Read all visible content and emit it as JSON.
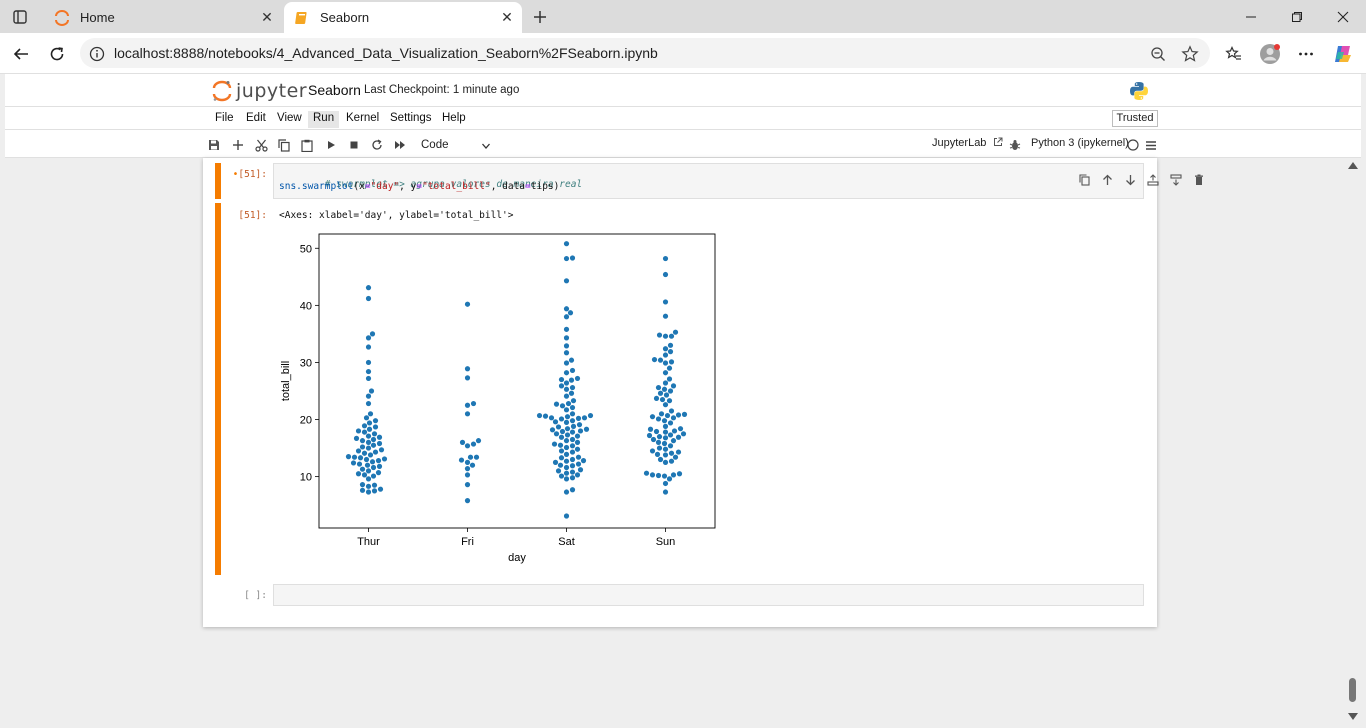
{
  "browser": {
    "tabs": [
      {
        "label": "Home",
        "icon": "jupyter-icon"
      },
      {
        "label": "Seaborn",
        "icon": "notebook-icon"
      }
    ],
    "url": "localhost:8888/notebooks/4_Advanced_Data_Visualization_Seaborn%2FSeaborn.ipynb"
  },
  "jupyter": {
    "logo_text": "jupyter",
    "notebook_title": "Seaborn",
    "checkpoint": "Last Checkpoint: 1 minute ago",
    "menu": [
      "File",
      "Edit",
      "View",
      "Run",
      "Kernel",
      "Settings",
      "Help"
    ],
    "active_menu": "Run",
    "trusted": "Trusted",
    "cell_type": "Code",
    "jupyterlab_link": "JupyterLab",
    "kernel": "Python 3 (ipykernel)"
  },
  "cells": {
    "code_cell": {
      "prompt": "[51]:",
      "line1": "# swarmplot => agrupa valores de maneira real",
      "line2_fn": "sns.swarmplot",
      "line2_args": "(x=\"day\", y=\"total_bill\", data=tips)",
      "line2_open": "(x",
      "line2_eq1": "=",
      "line2_s1": "\"day\"",
      "line2_c1": ", y",
      "line2_eq2": "=",
      "line2_s2": "\"total_bill\"",
      "line2_c2": ", data",
      "line2_eq3": "=",
      "line2_tail": "tips)"
    },
    "output_cell": {
      "prompt": "[51]:",
      "text": "<Axes: xlabel='day', ylabel='total_bill'>"
    },
    "empty_cell": {
      "prompt": "[ ]:"
    }
  },
  "chart_data": {
    "type": "scatter",
    "subtype": "swarm",
    "xlabel": "day",
    "ylabel": "total_bill",
    "categories": [
      "Thur",
      "Fri",
      "Sat",
      "Sun"
    ],
    "yticks": [
      10,
      20,
      30,
      40,
      50
    ],
    "ylim": [
      1,
      52.5
    ],
    "point_color": "#1f77b4",
    "values": {
      "Thur": [
        43.1,
        41.2,
        35.0,
        34.3,
        32.7,
        30.0,
        28.4,
        27.2,
        25.0,
        24.1,
        22.8,
        21.0,
        20.3,
        19.8,
        19.4,
        18.9,
        18.7,
        18.3,
        18.0,
        17.8,
        17.5,
        17.1,
        16.9,
        16.7,
        16.5,
        16.3,
        16.0,
        15.8,
        15.5,
        15.2,
        15.0,
        14.7,
        14.5,
        14.3,
        14.1,
        13.8,
        13.5,
        13.3,
        13.1,
        13.0,
        12.8,
        12.6,
        12.4,
        12.2,
        12.0,
        11.8,
        11.6,
        11.3,
        11.0,
        10.7,
        10.3,
        10.1,
        9.6,
        8.6,
        8.5,
        8.3,
        7.8,
        7.6,
        7.5,
        7.3,
        10.5,
        13.4
      ],
      "Fri": [
        40.2,
        28.9,
        27.3,
        22.8,
        22.5,
        21.0,
        16.3,
        16.0,
        15.7,
        15.4,
        13.4,
        13.4,
        12.9,
        12.5,
        12.0,
        11.4,
        10.3,
        8.6,
        5.8
      ],
      "Sat": [
        50.8,
        48.3,
        48.2,
        44.3,
        39.4,
        38.7,
        38.0,
        35.8,
        34.3,
        32.9,
        31.7,
        30.4,
        29.9,
        28.6,
        28.2,
        27.2,
        27.0,
        26.9,
        26.4,
        25.9,
        25.6,
        25.3,
        24.6,
        24.1,
        23.3,
        22.8,
        22.7,
        22.4,
        22.1,
        21.7,
        21.0,
        20.7,
        20.7,
        20.6,
        20.5,
        20.3,
        20.3,
        20.2,
        20.1,
        19.8,
        19.6,
        19.5,
        19.1,
        18.8,
        18.7,
        18.4,
        18.3,
        18.2,
        18.0,
        17.9,
        17.8,
        17.5,
        17.3,
        17.1,
        16.9,
        16.5,
        16.3,
        16.0,
        15.7,
        15.5,
        15.4,
        15.1,
        14.8,
        14.5,
        14.3,
        13.9,
        13.4,
        13.3,
        13.0,
        12.8,
        12.7,
        12.5,
        12.0,
        11.9,
        11.6,
        11.2,
        10.8,
        10.6,
        10.3,
        9.8,
        9.6,
        7.7,
        7.3,
        3.1,
        12.2,
        11.0,
        10.1
      ],
      "Sun": [
        48.2,
        45.4,
        40.6,
        38.1,
        35.3,
        34.8,
        34.6,
        34.6,
        33.0,
        32.4,
        31.9,
        31.3,
        30.5,
        30.4,
        30.1,
        29.9,
        29.0,
        28.2,
        27.1,
        26.4,
        25.9,
        25.6,
        25.3,
        25.0,
        24.6,
        24.3,
        23.7,
        23.5,
        23.3,
        22.6,
        21.5,
        21.0,
        20.9,
        20.8,
        20.7,
        20.5,
        20.3,
        20.1,
        19.8,
        19.4,
        18.8,
        18.4,
        18.3,
        18.0,
        17.9,
        17.8,
        17.5,
        17.3,
        17.2,
        17.0,
        16.9,
        16.8,
        16.5,
        16.3,
        16.0,
        15.8,
        15.4,
        15.0,
        14.8,
        14.5,
        14.3,
        14.1,
        13.9,
        13.8,
        13.4,
        13.0,
        12.7,
        12.5,
        10.6,
        10.5,
        10.3,
        10.3,
        10.2,
        10.1,
        9.6,
        8.8,
        7.3
      ],
      "_note": "values estimated from pixels"
    }
  }
}
